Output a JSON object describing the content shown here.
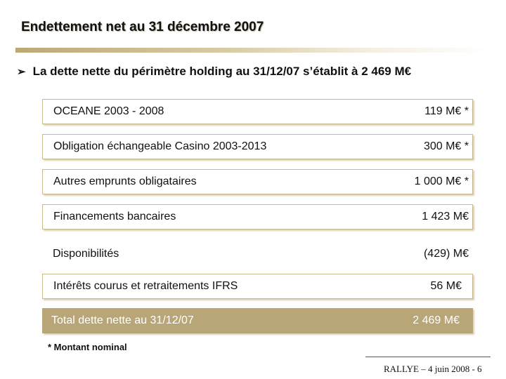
{
  "title": "Endettement net au 31 décembre 2007",
  "bullet": {
    "icon": "arrow-bullet-icon",
    "text": "La dette nette du périmètre holding au 31/12/07 s’établit à 2 469 M€"
  },
  "rows": [
    {
      "label": "OCEANE 2003 - 2008",
      "value": "119  M€ *"
    },
    {
      "label": "Obligation échangeable Casino 2003-2013",
      "value": "300  M€ *"
    },
    {
      "label": "Autres emprunts obligataires",
      "value": "1 000  M€ *"
    },
    {
      "label": "Financements bancaires",
      "value": "1 423 M€"
    },
    {
      "label": "Disponibilités",
      "value": "(429) M€"
    },
    {
      "label": "Intérêts courus et retraitements IFRS",
      "value": "56  M€"
    }
  ],
  "total": {
    "label": "Total dette nette au 31/12/07",
    "value": "2 469  M€"
  },
  "note": "* Montant nominal",
  "footer": "RALLYE – 4 juin 2008  -  6",
  "colors": {
    "accent": "#b8a678",
    "rule_start": "#bda875"
  }
}
